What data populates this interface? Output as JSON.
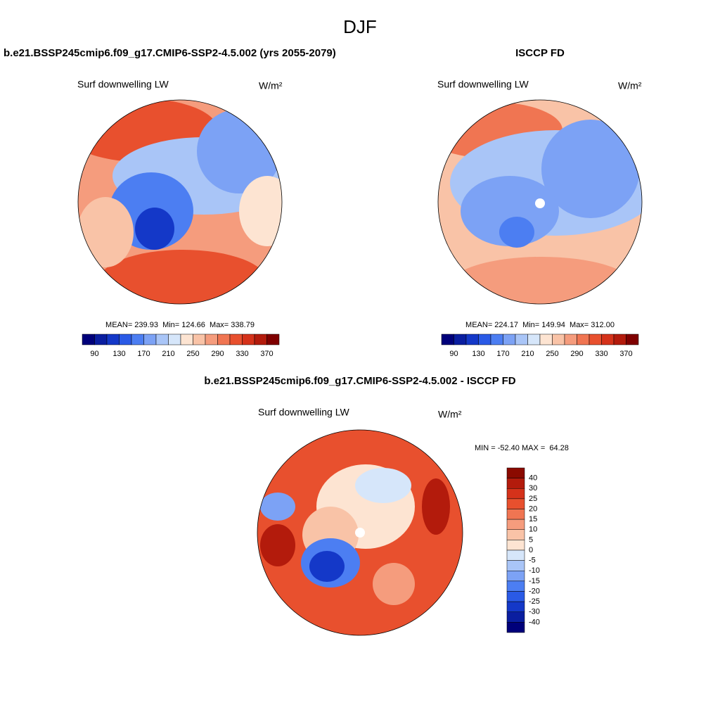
{
  "title": "DJF",
  "panels": [
    {
      "title": "b.e21.BSSP245cmip6.f09_g17.CMIP6-SSP2-4.5.002 (yrs 2055-2079)",
      "variable": "Surf downwelling LW",
      "units": "W/m²",
      "stats": "MEAN= 239.93  Min= 124.66  Max= 338.79",
      "colorbar": {
        "orientation": "horizontal",
        "labels": [
          90,
          130,
          170,
          210,
          250,
          290,
          330,
          370
        ],
        "colors": [
          "#00007a",
          "#0a1ea0",
          "#1438c8",
          "#2a5ae6",
          "#4c7ef2",
          "#7ca2f5",
          "#a9c5f7",
          "#d6e6fa",
          "#fde4d2",
          "#f9c3a7",
          "#f59c7d",
          "#f07552",
          "#e8502e",
          "#d5321a",
          "#b31b0c",
          "#7f0000"
        ]
      }
    },
    {
      "title": "ISCCP FD",
      "variable": "Surf downwelling LW",
      "units": "W/m²",
      "stats": "MEAN= 224.17  Min= 149.94  Max= 312.00",
      "colorbar": {
        "orientation": "horizontal",
        "labels": [
          90,
          130,
          170,
          210,
          250,
          290,
          330,
          370
        ],
        "colors": [
          "#00007a",
          "#0a1ea0",
          "#1438c8",
          "#2a5ae6",
          "#4c7ef2",
          "#7ca2f5",
          "#a9c5f7",
          "#d6e6fa",
          "#fde4d2",
          "#f9c3a7",
          "#f59c7d",
          "#f07552",
          "#e8502e",
          "#d5321a",
          "#b31b0c",
          "#7f0000"
        ]
      }
    },
    {
      "title": "b.e21.BSSP245cmip6.f09_g17.CMIP6-SSP2-4.5.002 - ISCCP FD",
      "variable": "Surf downwelling LW",
      "units": "W/m²",
      "stats": "MIN = -52.40 MAX =  64.28",
      "colorbar": {
        "orientation": "vertical",
        "labels": [
          40,
          30,
          25,
          20,
          15,
          10,
          5,
          0,
          -5,
          -10,
          -15,
          -20,
          -25,
          -30,
          -40
        ],
        "colors": [
          "#8b0a00",
          "#b31b0c",
          "#d5321a",
          "#e8502e",
          "#f07552",
          "#f59c7d",
          "#f9c3a7",
          "#fde4d2",
          "#d6e6fa",
          "#a9c5f7",
          "#7ca2f5",
          "#4c7ef2",
          "#2a5ae6",
          "#1438c8",
          "#0a1ea0",
          "#00007a"
        ]
      }
    }
  ]
}
